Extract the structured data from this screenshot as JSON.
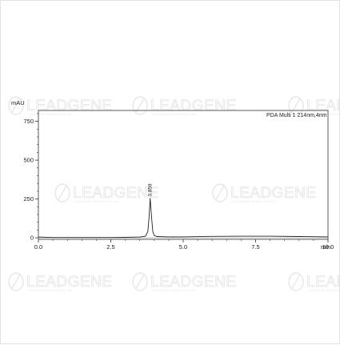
{
  "chart_data": {
    "type": "line",
    "ylabel": "mAU",
    "xlabel": "min",
    "xlim": [
      0.0,
      10.0
    ],
    "ylim": [
      -10,
      820
    ],
    "x_ticks": [
      "0.0",
      "2.5",
      "5.0",
      "7.5",
      "10.0"
    ],
    "x_tick_values": [
      0.0,
      2.5,
      5.0,
      7.5,
      10.0
    ],
    "y_ticks": [
      "0",
      "250",
      "500",
      "750"
    ],
    "y_tick_values": [
      0,
      250,
      500,
      750
    ],
    "legend": "PDA Multi 1 214nm,4nm",
    "legend_position": "top-right",
    "grid": false,
    "series": [
      {
        "points": [
          [
            0.0,
            5
          ],
          [
            0.5,
            2
          ],
          [
            1.0,
            2
          ],
          [
            1.5,
            2
          ],
          [
            2.0,
            2
          ],
          [
            2.5,
            2
          ],
          [
            3.0,
            3
          ],
          [
            3.5,
            5
          ],
          [
            3.7,
            10
          ],
          [
            3.78,
            40
          ],
          [
            3.82,
            130
          ],
          [
            3.859,
            255
          ],
          [
            3.9,
            150
          ],
          [
            3.95,
            40
          ],
          [
            4.0,
            14
          ],
          [
            4.1,
            8
          ],
          [
            4.5,
            6
          ],
          [
            5.0,
            6
          ],
          [
            6.0,
            9
          ],
          [
            7.0,
            10
          ],
          [
            8.0,
            10
          ],
          [
            9.0,
            8
          ],
          [
            10.0,
            6
          ]
        ]
      }
    ],
    "peaks": [
      {
        "x": 3.859,
        "y": 255,
        "label": "3.859"
      }
    ]
  },
  "watermark": {
    "text": "LEADGENE",
    "subtext": "LEADGENE BIOMEDICAL INC."
  },
  "colors": {
    "trace": "#222222",
    "axis": "#333333",
    "watermark": "#c9c9c9"
  }
}
